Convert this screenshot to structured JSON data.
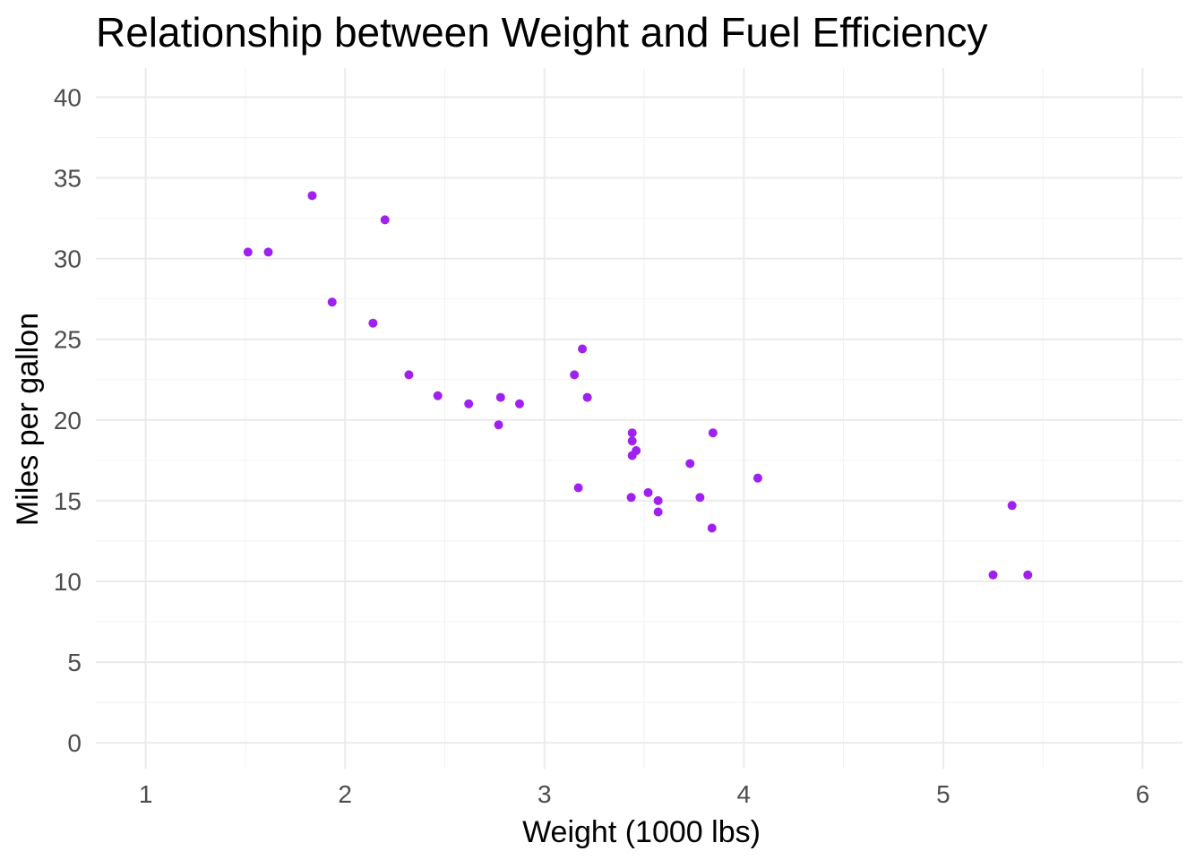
{
  "chart_data": {
    "type": "scatter",
    "title": "Relationship between Weight and Fuel Efficiency",
    "xlabel": "Weight (1000 lbs)",
    "ylabel": "Miles per gallon",
    "xlim": [
      0.75,
      6.2
    ],
    "ylim": [
      -1.6,
      41.8
    ],
    "x_ticks": [
      1,
      2,
      3,
      4,
      5,
      6
    ],
    "y_ticks": [
      0,
      5,
      10,
      15,
      20,
      25,
      30,
      35,
      40
    ],
    "grid": true,
    "legend": "none",
    "point_color": "#a020f0",
    "x": [
      1.513,
      1.615,
      1.835,
      1.935,
      2.14,
      2.2,
      2.32,
      2.465,
      2.62,
      2.77,
      2.78,
      2.875,
      3.15,
      3.17,
      3.19,
      3.215,
      3.435,
      3.44,
      3.44,
      3.44,
      3.46,
      3.52,
      3.57,
      3.57,
      3.73,
      3.78,
      3.84,
      3.845,
      4.07,
      5.25,
      5.345,
      5.424
    ],
    "y": [
      30.4,
      30.4,
      33.9,
      27.3,
      26.0,
      32.4,
      22.8,
      21.5,
      21.0,
      19.7,
      21.4,
      21.0,
      22.8,
      15.8,
      24.4,
      21.4,
      15.2,
      18.7,
      19.2,
      17.8,
      18.1,
      15.5,
      15.0,
      14.3,
      17.3,
      15.2,
      13.3,
      19.2,
      16.4,
      10.4,
      14.7,
      10.4
    ]
  }
}
